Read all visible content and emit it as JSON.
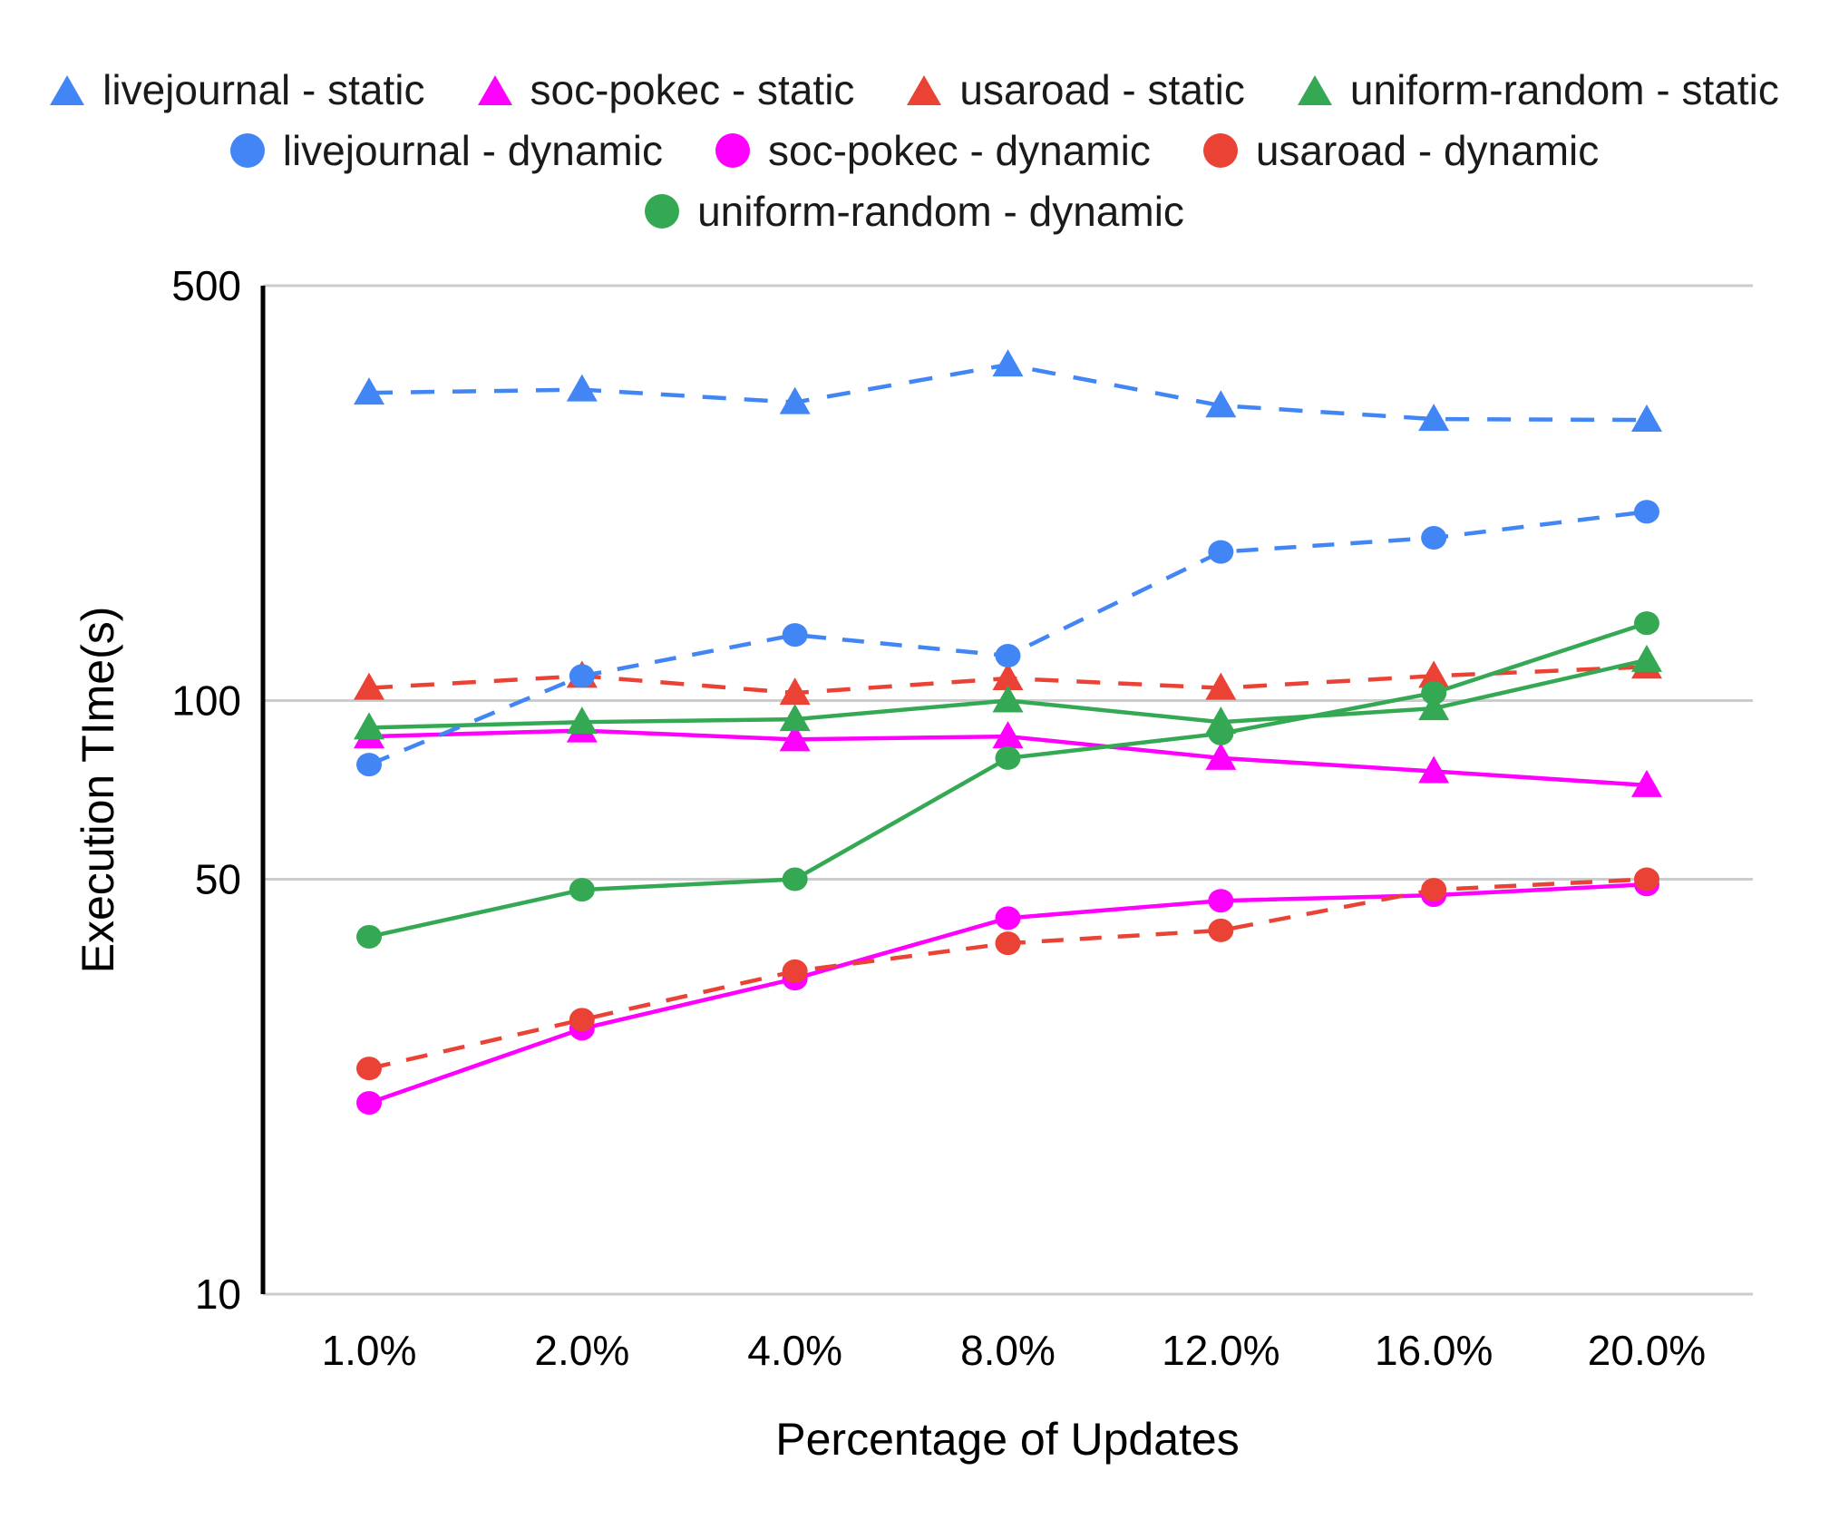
{
  "chart_data": {
    "type": "line",
    "title": "",
    "xlabel": "Percentage of Updates",
    "ylabel": "Execution TIme(s)",
    "x_categories": [
      "1.0%",
      "2.0%",
      "4.0%",
      "8.0%",
      "12.0%",
      "16.0%",
      "20.0%"
    ],
    "y_scale": "log",
    "ylim": [
      10,
      500
    ],
    "y_tick_values": [
      10,
      50,
      100,
      500
    ],
    "y_tick_labels": [
      "10",
      "50",
      "100",
      "500"
    ],
    "grid": "horizontal-gridlines-at-y-ticks",
    "legend_position": "top",
    "series": [
      {
        "name": "livejournal - static",
        "color": "#4285f4",
        "line": "dashed",
        "marker": "triangle",
        "values": [
          330,
          334,
          318,
          368,
          314,
          298,
          297
        ]
      },
      {
        "name": "soc-pokec - static",
        "color": "#ff00ff",
        "line": "solid",
        "marker": "triangle",
        "values": [
          87,
          89,
          86,
          87,
          80,
          76,
          72
        ]
      },
      {
        "name": "usaroad - static",
        "color": "#ea4335",
        "line": "dashed",
        "marker": "triangle",
        "values": [
          105,
          110,
          103,
          109,
          105,
          110,
          114
        ]
      },
      {
        "name": "uniform-random - static",
        "color": "#34a853",
        "line": "solid",
        "marker": "triangle",
        "values": [
          90,
          92,
          93,
          100,
          92,
          97,
          117
        ]
      },
      {
        "name": "livejournal - dynamic",
        "color": "#4285f4",
        "line": "dashed",
        "marker": "circle",
        "values": [
          78,
          110,
          129,
          119,
          178,
          188,
          208
        ]
      },
      {
        "name": "soc-pokec - dynamic",
        "color": "#ff00ff",
        "line": "solid",
        "marker": "circle",
        "values": [
          21,
          28,
          34,
          43,
          46,
          47,
          49
        ]
      },
      {
        "name": "usaroad - dynamic",
        "color": "#ea4335",
        "line": "dashed",
        "marker": "circle",
        "values": [
          24,
          29,
          35,
          39,
          41,
          48,
          50
        ]
      },
      {
        "name": "uniform-random - dynamic",
        "color": "#34a853",
        "line": "solid",
        "marker": "circle",
        "values": [
          40,
          48,
          50,
          80,
          88,
          103,
          135
        ]
      }
    ],
    "legend_rows": [
      [
        0,
        1,
        2,
        3
      ],
      [
        4,
        5,
        6
      ],
      [
        7
      ]
    ],
    "draw_order": [
      1,
      2,
      3,
      0,
      5,
      6,
      7,
      4
    ],
    "colors": {
      "gridline": "#cccccc",
      "y_axis_line": "#000000",
      "tick_label": "#000000",
      "legend_text": "#1a1a1a"
    }
  }
}
